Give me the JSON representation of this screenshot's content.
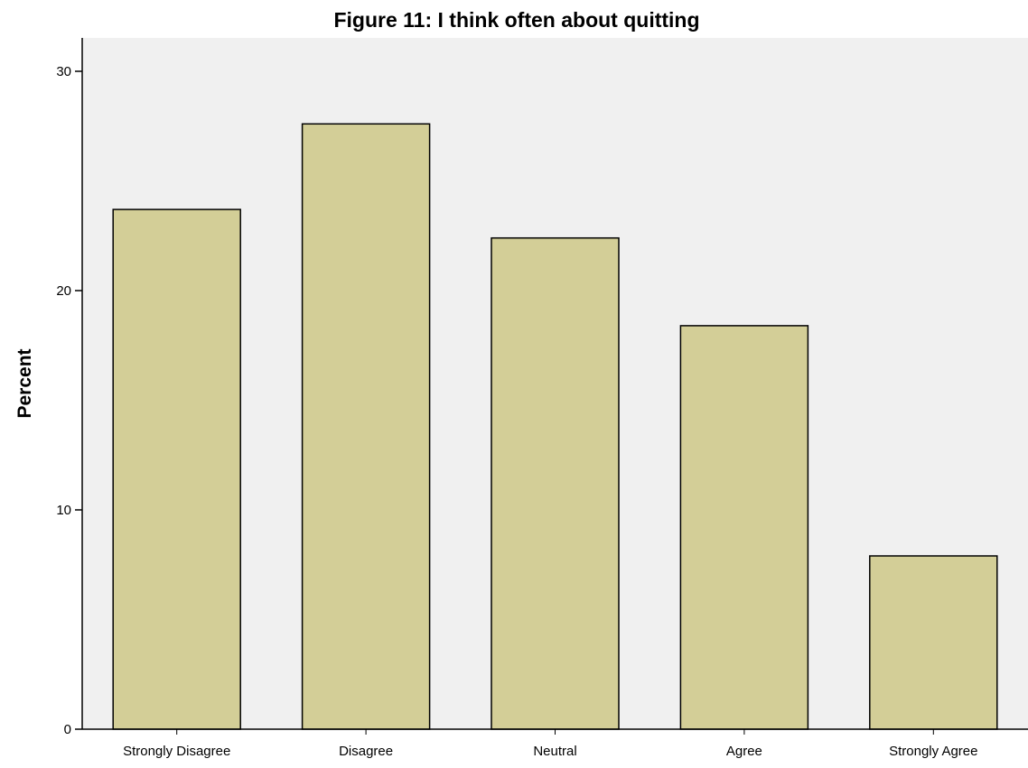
{
  "chart_data": {
    "type": "bar",
    "title": "Figure 11: I think often about quitting",
    "xlabel": "",
    "ylabel": "Percent",
    "categories": [
      "Strongly Disagree",
      "Disagree",
      "Neutral",
      "Agree",
      "Strongly Agree"
    ],
    "values": [
      23.7,
      27.6,
      22.4,
      18.4,
      7.9
    ],
    "ylim": [
      0,
      31.5
    ],
    "yticks": [
      0,
      10,
      20,
      30
    ],
    "grid": false,
    "legend": "none",
    "colors": {
      "bar_fill": "#d3ce97",
      "bar_stroke": "#000000",
      "plot_background": "#f0f0f0",
      "axis": "#000000"
    }
  }
}
